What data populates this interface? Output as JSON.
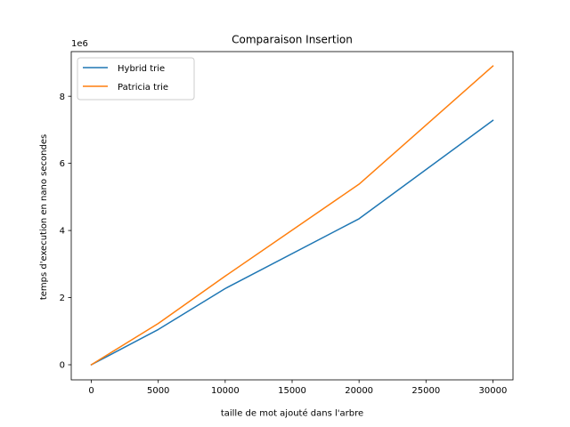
{
  "chart_data": {
    "type": "line",
    "title": "Comparaison Insertion",
    "xlabel": "taille de mot ajouté dans l'arbre",
    "ylabel": "temps d'execution en nano secondes",
    "y_offset_label": "1e6",
    "xlim": [
      -1500,
      31500
    ],
    "ylim": [
      -450000,
      9330000
    ],
    "x_ticks": [
      0,
      5000,
      10000,
      15000,
      20000,
      25000,
      30000
    ],
    "x_tick_labels": [
      "0",
      "5000",
      "10000",
      "15000",
      "20000",
      "25000",
      "30000"
    ],
    "y_ticks": [
      0,
      2000000,
      4000000,
      6000000,
      8000000
    ],
    "y_tick_labels": [
      "0",
      "2",
      "4",
      "6",
      "8"
    ],
    "x": [
      0,
      5000,
      10000,
      20000,
      30000
    ],
    "series": [
      {
        "name": "Hybrid trie",
        "color": "#1f77b4",
        "values": [
          0,
          1050000,
          2270000,
          4350000,
          7280000
        ]
      },
      {
        "name": "Patricia trie",
        "color": "#ff7f0e",
        "values": [
          0,
          1230000,
          2640000,
          5380000,
          8900000
        ]
      }
    ],
    "grid": false,
    "legend_position": "top-left"
  }
}
